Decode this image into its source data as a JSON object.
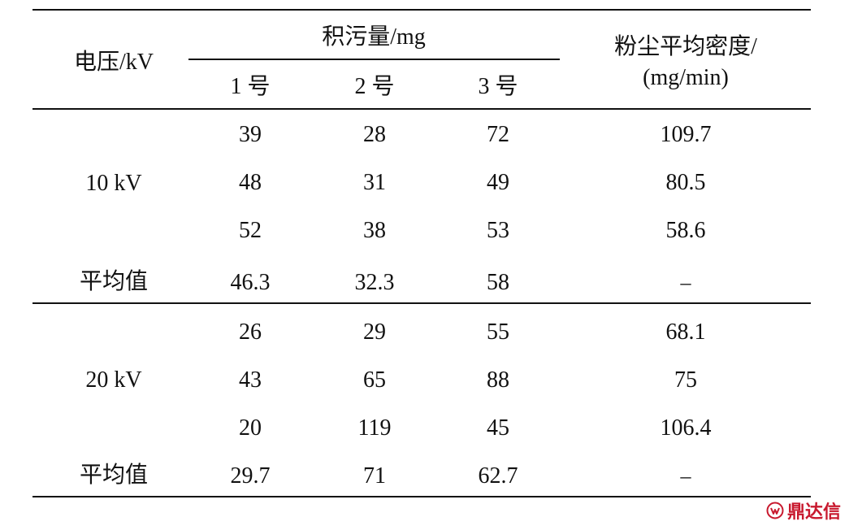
{
  "table": {
    "header": {
      "voltage": "电压/kV",
      "deposit_group": "积污量/mg",
      "samples": [
        "1 号",
        "2 号",
        "3 号"
      ],
      "density_line1": "粉尘平均密度/",
      "density_line2": "(mg/min)"
    },
    "groups": [
      {
        "label": "10 kV",
        "rows": [
          [
            "39",
            "28",
            "72",
            "109.7"
          ],
          [
            "48",
            "31",
            "49",
            "80.5"
          ],
          [
            "52",
            "38",
            "53",
            "58.6"
          ]
        ],
        "average": {
          "label": "平均值",
          "values": [
            "46.3",
            "32.3",
            "58",
            "–"
          ]
        }
      },
      {
        "label": "20 kV",
        "rows": [
          [
            "26",
            "29",
            "55",
            "68.1"
          ],
          [
            "43",
            "65",
            "88",
            "75"
          ],
          [
            "20",
            "119",
            "45",
            "106.4"
          ]
        ],
        "average": {
          "label": "平均值",
          "values": [
            "29.7",
            "71",
            "62.7",
            "–"
          ]
        }
      }
    ]
  },
  "watermark": {
    "text": "鼎达信",
    "icon": "ddx-logo-icon",
    "color": "#c8192e"
  }
}
